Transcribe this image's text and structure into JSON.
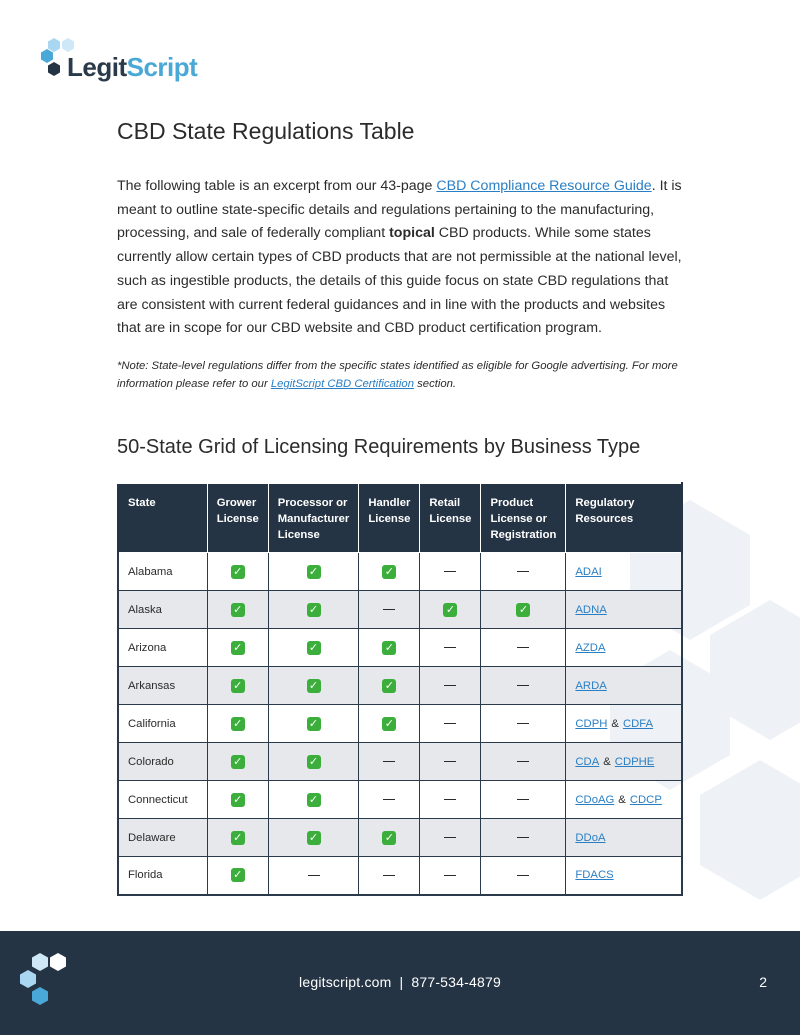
{
  "brand": {
    "name_part1": "Legit",
    "name_part2": "Script",
    "colors": {
      "dark": "#253444",
      "accent": "#4aa8d8",
      "link": "#2a7fc4",
      "check": "#3cae3c"
    }
  },
  "title": "CBD State Regulations Table",
  "intro": {
    "text1": "The following table is an excerpt from our 43-page ",
    "link": "CBD Compliance Resource Guide",
    "text2": ". It is meant to outline state-specific details and regulations pertaining to the manufacturing, processing, and sale of federally compliant ",
    "bold": "topical",
    "text3": " CBD products. While some states currently allow certain types of CBD products that are not permissible at the national level, such as ingestible products, the details of this guide focus on state CBD regulations that are consistent with current federal guidances and in line with the products and websites that are in scope for our CBD website and CBD product certification program."
  },
  "note": {
    "text1": "*Note: State-level regulations differ from the specific states identified as eligible for Google advertising. For more information please refer to our ",
    "link": "LegitScript CBD Certification",
    "text2": " section."
  },
  "subtitle": "50-State Grid of Licensing Requirements by Business Type",
  "table": {
    "headers": {
      "state": "State",
      "grower": "Grower License",
      "processor": "Processor or Manufacturer License",
      "handler": "Handler License",
      "retail": "Retail License",
      "product": "Product License or Registration",
      "resources": "Regulatory Resources"
    },
    "marks": {
      "yes": "✓",
      "no": "—"
    },
    "rows": [
      {
        "state": "Alabama",
        "grower": true,
        "processor": true,
        "handler": true,
        "retail": false,
        "product": false,
        "res1": "ADAI",
        "amp": "",
        "res2": ""
      },
      {
        "state": "Alaska",
        "grower": true,
        "processor": true,
        "handler": false,
        "retail": true,
        "product": true,
        "res1": "ADNA",
        "amp": "",
        "res2": ""
      },
      {
        "state": "Arizona",
        "grower": true,
        "processor": true,
        "handler": true,
        "retail": false,
        "product": false,
        "res1": "AZDA",
        "amp": "",
        "res2": ""
      },
      {
        "state": "Arkansas",
        "grower": true,
        "processor": true,
        "handler": true,
        "retail": false,
        "product": false,
        "res1": "ARDA",
        "amp": "",
        "res2": ""
      },
      {
        "state": "California",
        "grower": true,
        "processor": true,
        "handler": true,
        "retail": false,
        "product": false,
        "res1": "CDPH",
        "amp": "&",
        "res2": "CDFA"
      },
      {
        "state": "Colorado",
        "grower": true,
        "processor": true,
        "handler": false,
        "retail": false,
        "product": false,
        "res1": "CDA",
        "amp": "&",
        "res2": "CDPHE"
      },
      {
        "state": "Connecticut",
        "grower": true,
        "processor": true,
        "handler": false,
        "retail": false,
        "product": false,
        "res1": "CDoAG",
        "amp": "&",
        "res2": "CDCP"
      },
      {
        "state": "Delaware",
        "grower": true,
        "processor": true,
        "handler": true,
        "retail": false,
        "product": false,
        "res1": "DDoA",
        "amp": "",
        "res2": ""
      },
      {
        "state": "Florida",
        "grower": true,
        "processor": false,
        "handler": false,
        "retail": false,
        "product": false,
        "res1": "FDACS",
        "amp": "",
        "res2": ""
      }
    ]
  },
  "footer": {
    "website": "legitscript.com",
    "separator": "|",
    "phone": "877-534-4879",
    "page_number": "2"
  }
}
